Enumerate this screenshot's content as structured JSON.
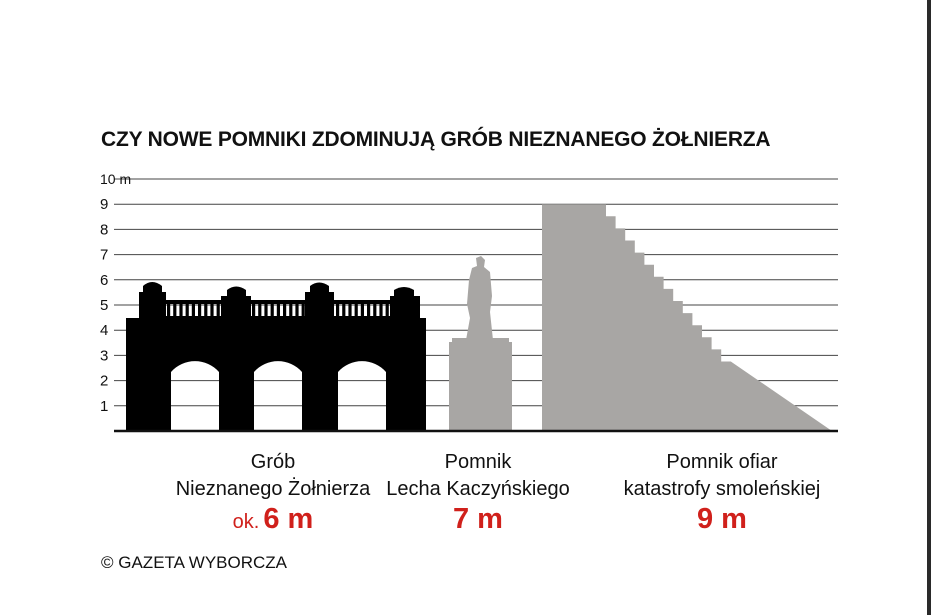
{
  "chart_data": {
    "type": "bar",
    "title": "CZY NOWE POMNIKI ZDOMINUJĄ GRÓB NIEZNANEGO ŻOŁNIERZA",
    "ylim": [
      0,
      10
    ],
    "y_ticks": [
      "1",
      "2",
      "3",
      "4",
      "5",
      "6",
      "7",
      "8",
      "9",
      "10 m"
    ],
    "grid": true,
    "categories": [
      "Grób\nNieznanego Żołnierza",
      "Pomnik\nLecha Kaczyńskiego",
      "Pomnik ofiar\nkatastrofy smoleńskiej"
    ],
    "values": [
      6,
      7,
      9
    ],
    "value_labels": [
      {
        "prefix": "ok.",
        "value": "6 m"
      },
      {
        "prefix": "",
        "value": "7 m"
      },
      {
        "prefix": "",
        "value": "9 m"
      }
    ],
    "colors": {
      "tomb": "#000000",
      "monument": "#a8a6a4",
      "value_label": "#d0201b",
      "grid": "#444444"
    }
  },
  "credit": "© GAZETA WYBORCZA"
}
